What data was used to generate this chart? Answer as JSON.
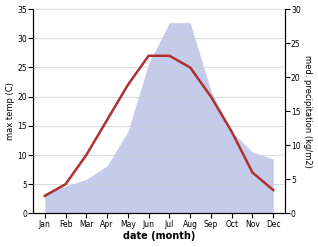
{
  "months": [
    "Jan",
    "Feb",
    "Mar",
    "Apr",
    "May",
    "Jun",
    "Jul",
    "Aug",
    "Sep",
    "Oct",
    "Nov",
    "Dec"
  ],
  "temp": [
    3,
    5,
    10,
    16,
    22,
    27,
    27,
    25,
    20,
    14,
    7,
    4
  ],
  "precip": [
    3,
    4,
    5,
    7,
    12,
    22,
    28,
    28,
    18,
    12,
    9,
    8
  ],
  "temp_color": "#b03030",
  "precip_fill_color": "#c5ccea",
  "xlabel": "date (month)",
  "ylabel_left": "max temp (C)",
  "ylabel_right": "med. precipitation (kg/m2)",
  "ylim_left": [
    0,
    35
  ],
  "ylim_right": [
    0,
    30
  ],
  "yticks_left": [
    0,
    5,
    10,
    15,
    20,
    25,
    30,
    35
  ],
  "yticks_right": [
    0,
    5,
    10,
    15,
    20,
    25,
    30
  ],
  "line_width": 1.8,
  "grid_color": "#cccccc"
}
